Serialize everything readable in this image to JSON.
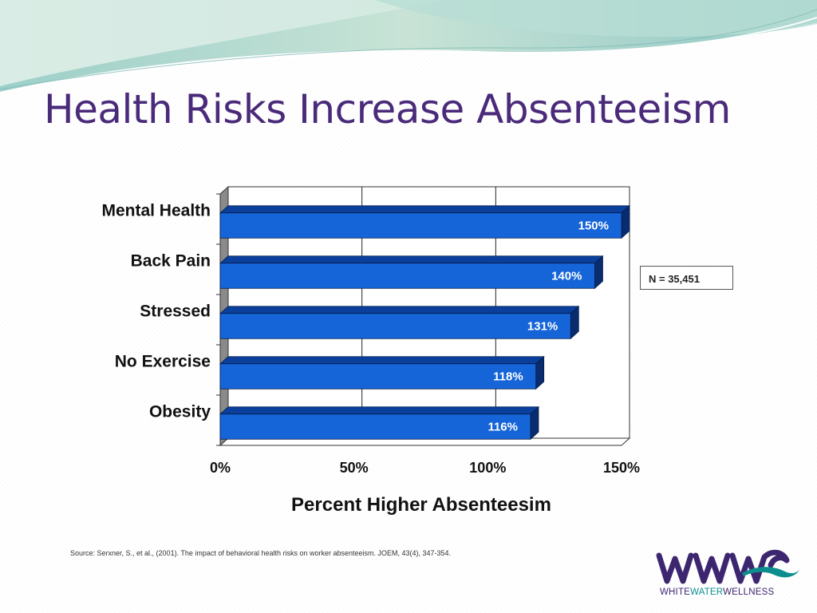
{
  "slide": {
    "title": "Health Risks Increase Absenteeism",
    "note": "N = 35,451",
    "source": "Source: Serxner, S., et al., (2001). The impact of behavioral health risks on worker absenteeism. JOEM, 43(4), 347-354.",
    "logo": {
      "part1": "WHITE",
      "part2": "WATER",
      "part3": "WELLNESS"
    }
  },
  "colors": {
    "title": "#4a2a7a",
    "bar_front": "#1565d8",
    "bar_top": "#0a3f9c",
    "bar_side": "#082c6e",
    "logo_purple": "#3d2670",
    "logo_teal": "#0c8e8e"
  },
  "chart_data": {
    "type": "bar",
    "orientation": "horizontal",
    "categories": [
      "Mental Health",
      "Back Pain",
      "Stressed",
      "No Exercise",
      "Obesity"
    ],
    "values": [
      150,
      140,
      131,
      118,
      116
    ],
    "value_labels": [
      "150%",
      "140%",
      "131%",
      "118%",
      "116%"
    ],
    "xlabel": "Percent Higher Absenteesim",
    "xlim": [
      0,
      150
    ],
    "xticks": [
      0,
      50,
      100,
      150
    ],
    "xtick_labels": [
      "0%",
      "50%",
      "100%",
      "150%"
    ],
    "grid": true,
    "style": "3d"
  }
}
